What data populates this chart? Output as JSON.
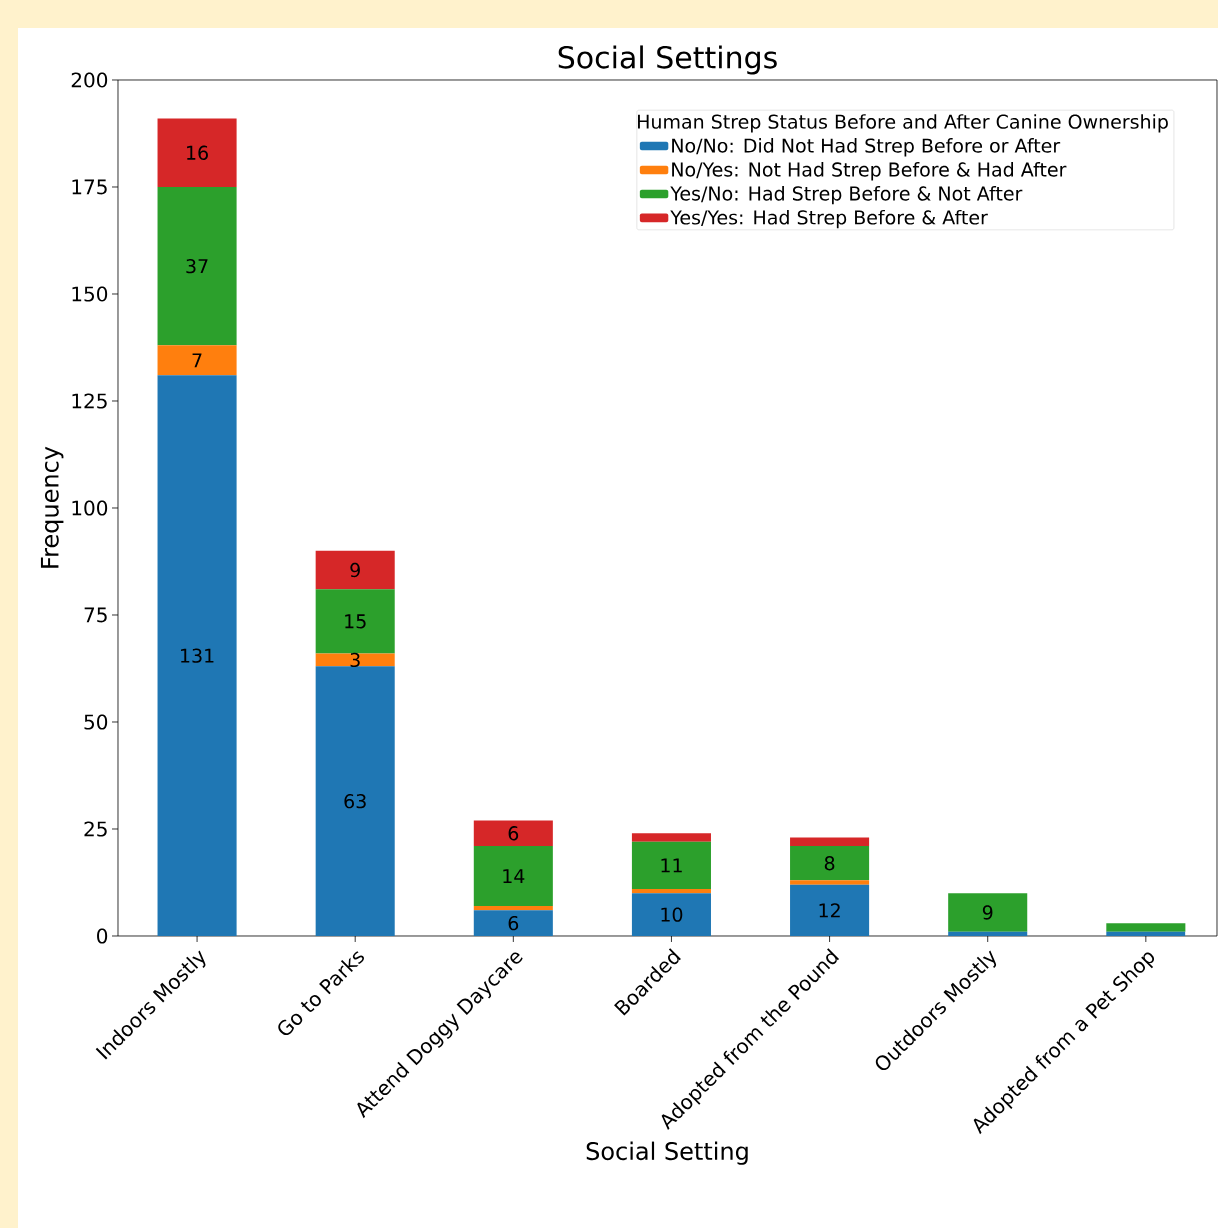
{
  "chart_data": {
    "type": "bar",
    "title": "Social Settings",
    "xlabel": "Social Setting",
    "ylabel": "Frequency",
    "legend_title": "Human Strep Status Before and After Canine Ownership",
    "categories": [
      "Indoors Mostly",
      "Go to Parks",
      "Attend Doggy Daycare",
      "Boarded",
      "Adopted from the Pound",
      "Outdoors Mostly",
      "Adopted from a Pet Shop"
    ],
    "stacked": true,
    "ylim": [
      0,
      200
    ],
    "yticks": [
      0,
      25,
      50,
      75,
      100,
      125,
      150,
      175,
      200
    ],
    "grid": false,
    "legend": "top right",
    "series": [
      {
        "name": "No/No: Did Not Had Strep Before or After",
        "color": "#1f77b4",
        "values": [
          131,
          63,
          6,
          10,
          12,
          1,
          1
        ],
        "value_labels": [
          "131",
          "63",
          "6",
          "10",
          "12",
          null,
          null
        ]
      },
      {
        "name": "No/Yes: Not Had Strep Before & Had After",
        "color": "#ff7f0e",
        "values": [
          7,
          3,
          1,
          1,
          1,
          0,
          0
        ],
        "value_labels": [
          "7",
          "3",
          null,
          null,
          null,
          null,
          null
        ]
      },
      {
        "name": "Yes/No: Had Strep Before & Not After",
        "color": "#2ca02c",
        "values": [
          37,
          15,
          14,
          11,
          8,
          9,
          2
        ],
        "value_labels": [
          "37",
          "15",
          "14",
          "11",
          "8",
          "9",
          null
        ]
      },
      {
        "name": "Yes/Yes: Had Strep Before & After",
        "color": "#d62728",
        "values": [
          16,
          9,
          6,
          2,
          2,
          0,
          0
        ],
        "value_labels": [
          "16",
          "9",
          "6",
          null,
          null,
          null,
          null
        ]
      }
    ]
  }
}
